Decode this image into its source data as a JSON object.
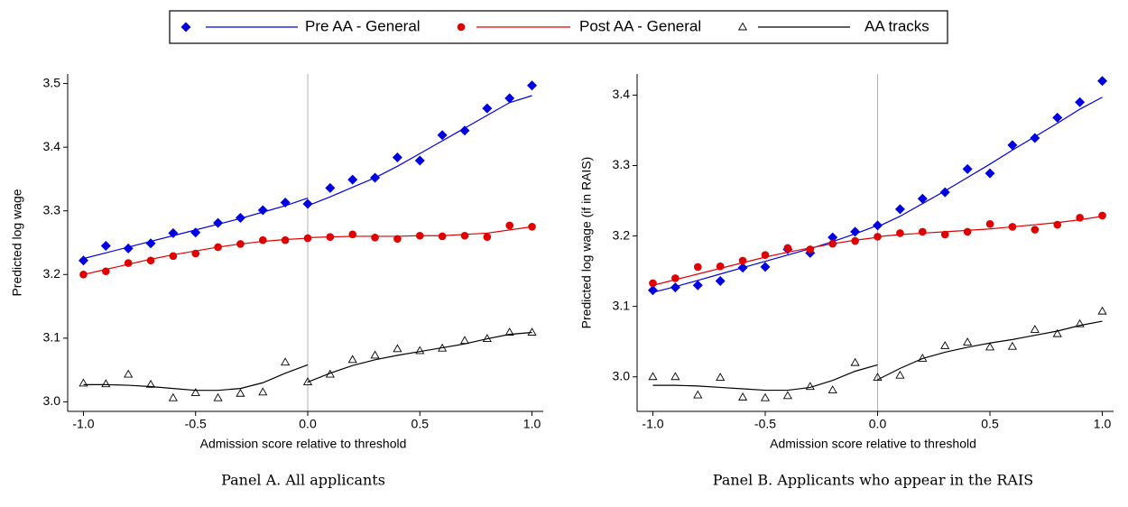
{
  "chart_data": [
    {
      "type": "scatter",
      "caption": "Panel A. All applicants",
      "xlabel": "Admission score relative to threshold",
      "ylabel": "Predicted log wage",
      "xlim": [
        -1.03,
        1.03
      ],
      "xticks": [
        {
          "value": -1,
          "label": "-1.0"
        },
        {
          "value": -0.5,
          "label": "-0.5"
        },
        {
          "value": 0,
          "label": "0.0"
        },
        {
          "value": 0.5,
          "label": "0.5"
        },
        {
          "value": 1,
          "label": "1.0"
        }
      ],
      "ylim": [
        2.985,
        3.515
      ],
      "yticks": [
        {
          "value": 3,
          "label": "3.0"
        },
        3.1,
        3.2,
        3.3,
        3.4,
        3.5
      ],
      "reference_line_x": 0,
      "x": [
        -1,
        -0.9,
        -0.8,
        -0.7,
        -0.6,
        -0.5,
        -0.4,
        -0.3,
        -0.2,
        -0.1,
        0,
        0.1,
        0.2,
        0.3,
        0.4,
        0.5,
        0.6,
        0.7,
        0.8,
        0.9,
        1
      ],
      "fit_x": [
        -1,
        -0.9,
        -0.8,
        -0.7,
        -0.6,
        -0.5,
        -0.4,
        -0.3,
        -0.2,
        -0.1,
        0,
        null,
        0,
        0.1,
        0.2,
        0.3,
        0.4,
        0.5,
        0.6,
        0.7,
        0.8,
        0.9,
        1
      ],
      "series": [
        {
          "name": "Pre AA - General",
          "color": "#0000e0",
          "marker": "diamond",
          "values": [
            3.222,
            3.245,
            3.241,
            3.249,
            3.265,
            3.266,
            3.281,
            3.289,
            3.301,
            3.313,
            3.311,
            3.336,
            3.349,
            3.352,
            3.384,
            3.379,
            3.419,
            3.426,
            3.461,
            3.477,
            3.497
          ],
          "fit": [
            3.225,
            3.234,
            3.243,
            3.252,
            3.261,
            3.27,
            3.279,
            3.288,
            3.298,
            3.308,
            3.32,
            null,
            3.308,
            3.322,
            3.337,
            3.352,
            3.37,
            3.39,
            3.41,
            3.43,
            3.45,
            3.47,
            3.481
          ]
        },
        {
          "name": "Post AA - General",
          "color": "#e00000",
          "marker": "circle",
          "values": [
            3.2,
            3.205,
            3.218,
            3.222,
            3.229,
            3.233,
            3.243,
            3.248,
            3.254,
            3.254,
            3.257,
            3.259,
            3.263,
            3.258,
            3.256,
            3.261,
            3.26,
            3.261,
            3.259,
            3.277,
            3.275
          ],
          "fit": [
            3.2,
            3.208,
            3.216,
            3.224,
            3.231,
            3.237,
            3.243,
            3.248,
            3.252,
            3.255,
            3.257,
            null,
            3.258,
            3.259,
            3.26,
            3.26,
            3.26,
            3.261,
            3.261,
            3.263,
            3.265,
            3.27,
            3.275
          ]
        },
        {
          "name": "AA tracks",
          "color": "#000000",
          "marker": "triangle",
          "values": [
            3.029,
            3.028,
            3.043,
            3.027,
            3.006,
            3.014,
            3.006,
            3.013,
            3.015,
            3.062,
            3.031,
            3.043,
            3.066,
            3.073,
            3.083,
            3.08,
            3.084,
            3.096,
            3.099,
            3.109,
            3.109
          ],
          "fit": [
            3.027,
            3.027,
            3.026,
            3.024,
            3.021,
            3.018,
            3.018,
            3.021,
            3.03,
            3.045,
            3.058,
            null,
            3.031,
            3.045,
            3.057,
            3.066,
            3.073,
            3.079,
            3.085,
            3.091,
            3.099,
            3.106,
            3.109
          ]
        }
      ]
    },
    {
      "type": "scatter",
      "caption": "Panel B. Applicants who appear in the RAIS",
      "xlabel": "Admission score relative to threshold",
      "ylabel": "Predicted log wage (if in RAIS)",
      "xlim": [
        -1.03,
        1.03
      ],
      "xticks": [
        {
          "value": -1,
          "label": "-1.0"
        },
        {
          "value": -0.5,
          "label": "-0.5"
        },
        {
          "value": 0,
          "label": "0.0"
        },
        {
          "value": 0.5,
          "label": "0.5"
        },
        {
          "value": 1,
          "label": "1.0"
        }
      ],
      "ylim": [
        2.951,
        3.43
      ],
      "yticks": [
        {
          "value": 3,
          "label": "3.0"
        },
        3.1,
        3.2,
        3.3,
        3.4
      ],
      "reference_line_x": 0,
      "x": [
        -1,
        -0.9,
        -0.8,
        -0.7,
        -0.6,
        -0.5,
        -0.4,
        -0.3,
        -0.2,
        -0.1,
        0,
        0.1,
        0.2,
        0.3,
        0.4,
        0.5,
        0.6,
        0.7,
        0.8,
        0.9,
        1
      ],
      "fit_x": [
        -1,
        -0.9,
        -0.8,
        -0.7,
        -0.6,
        -0.5,
        -0.4,
        -0.3,
        -0.2,
        -0.1,
        0,
        null,
        0,
        0.1,
        0.2,
        0.3,
        0.4,
        0.5,
        0.6,
        0.7,
        0.8,
        0.9,
        1
      ],
      "series": [
        {
          "color": "#0000e0",
          "marker": "diamond",
          "values": [
            3.123,
            3.127,
            3.13,
            3.136,
            3.155,
            3.156,
            3.181,
            3.176,
            3.198,
            3.206,
            3.215,
            3.238,
            3.253,
            3.262,
            3.295,
            3.289,
            3.329,
            3.339,
            3.368,
            3.39,
            3.42
          ],
          "fit": [
            3.12,
            3.128,
            3.137,
            3.146,
            3.155,
            3.164,
            3.173,
            3.182,
            3.192,
            3.203,
            3.215,
            null,
            3.213,
            3.228,
            3.246,
            3.264,
            3.283,
            3.302,
            3.322,
            3.341,
            3.36,
            3.38,
            3.397
          ]
        },
        {
          "color": "#e00000",
          "marker": "circle",
          "values": [
            3.133,
            3.14,
            3.156,
            3.157,
            3.165,
            3.173,
            3.183,
            3.181,
            3.189,
            3.193,
            3.199,
            3.204,
            3.206,
            3.202,
            3.206,
            3.217,
            3.213,
            3.209,
            3.216,
            3.226,
            3.229
          ],
          "fit": [
            3.13,
            3.138,
            3.146,
            3.154,
            3.162,
            3.17,
            3.177,
            3.183,
            3.189,
            3.194,
            3.198,
            null,
            3.199,
            3.202,
            3.204,
            3.206,
            3.208,
            3.21,
            3.213,
            3.216,
            3.219,
            3.223,
            3.228
          ]
        },
        {
          "color": "#000000",
          "marker": "triangle",
          "values": [
            3.0,
            3.0,
            2.974,
            2.999,
            2.971,
            2.97,
            2.973,
            2.986,
            2.981,
            3.02,
            2.999,
            3.002,
            3.026,
            3.044,
            3.049,
            3.042,
            3.043,
            3.067,
            3.061,
            3.075,
            3.093
          ],
          "fit": [
            2.988,
            2.988,
            2.987,
            2.985,
            2.983,
            2.981,
            2.981,
            2.985,
            2.995,
            3.008,
            3.017,
            null,
            2.996,
            3.012,
            3.026,
            3.035,
            3.042,
            3.048,
            3.053,
            3.059,
            3.065,
            3.073,
            3.079
          ]
        }
      ]
    }
  ]
}
